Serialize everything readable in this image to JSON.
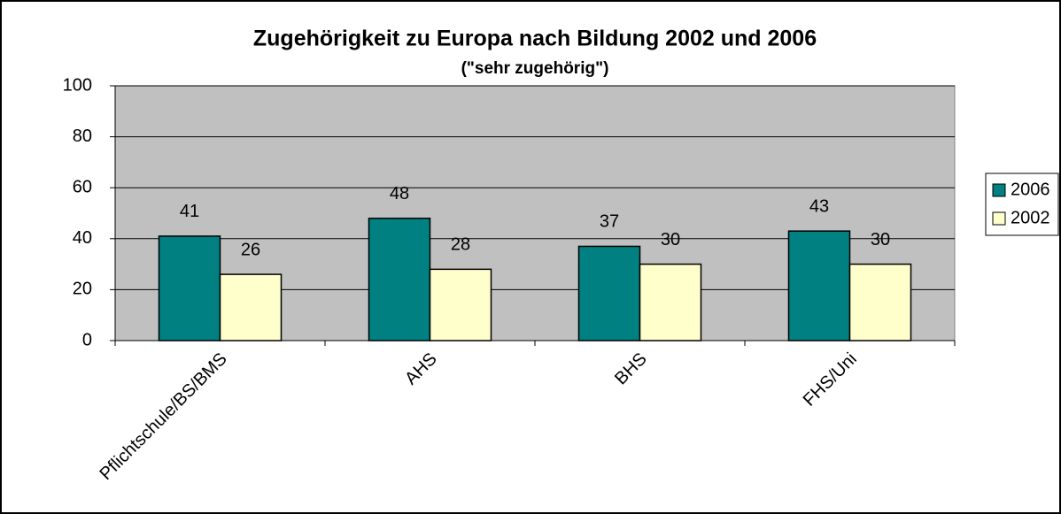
{
  "chart_data": {
    "type": "bar",
    "title": "Zugehörigkeit zu Europa nach Bildung 2002 und 2006",
    "subtitle": "(\"sehr zugehörig\")",
    "categories": [
      "Pflichtschule/BS/BMS",
      "AHS",
      "BHS",
      "FHS/Uni"
    ],
    "series": [
      {
        "name": "2006",
        "color": "#008080",
        "values": [
          41,
          48,
          37,
          43
        ]
      },
      {
        "name": "2002",
        "color": "#ffffcc",
        "values": [
          26,
          28,
          30,
          30
        ]
      }
    ],
    "ylim": [
      0,
      100
    ],
    "yticks": [
      0,
      20,
      40,
      60,
      80,
      100
    ],
    "grid": true,
    "legend": "right"
  }
}
